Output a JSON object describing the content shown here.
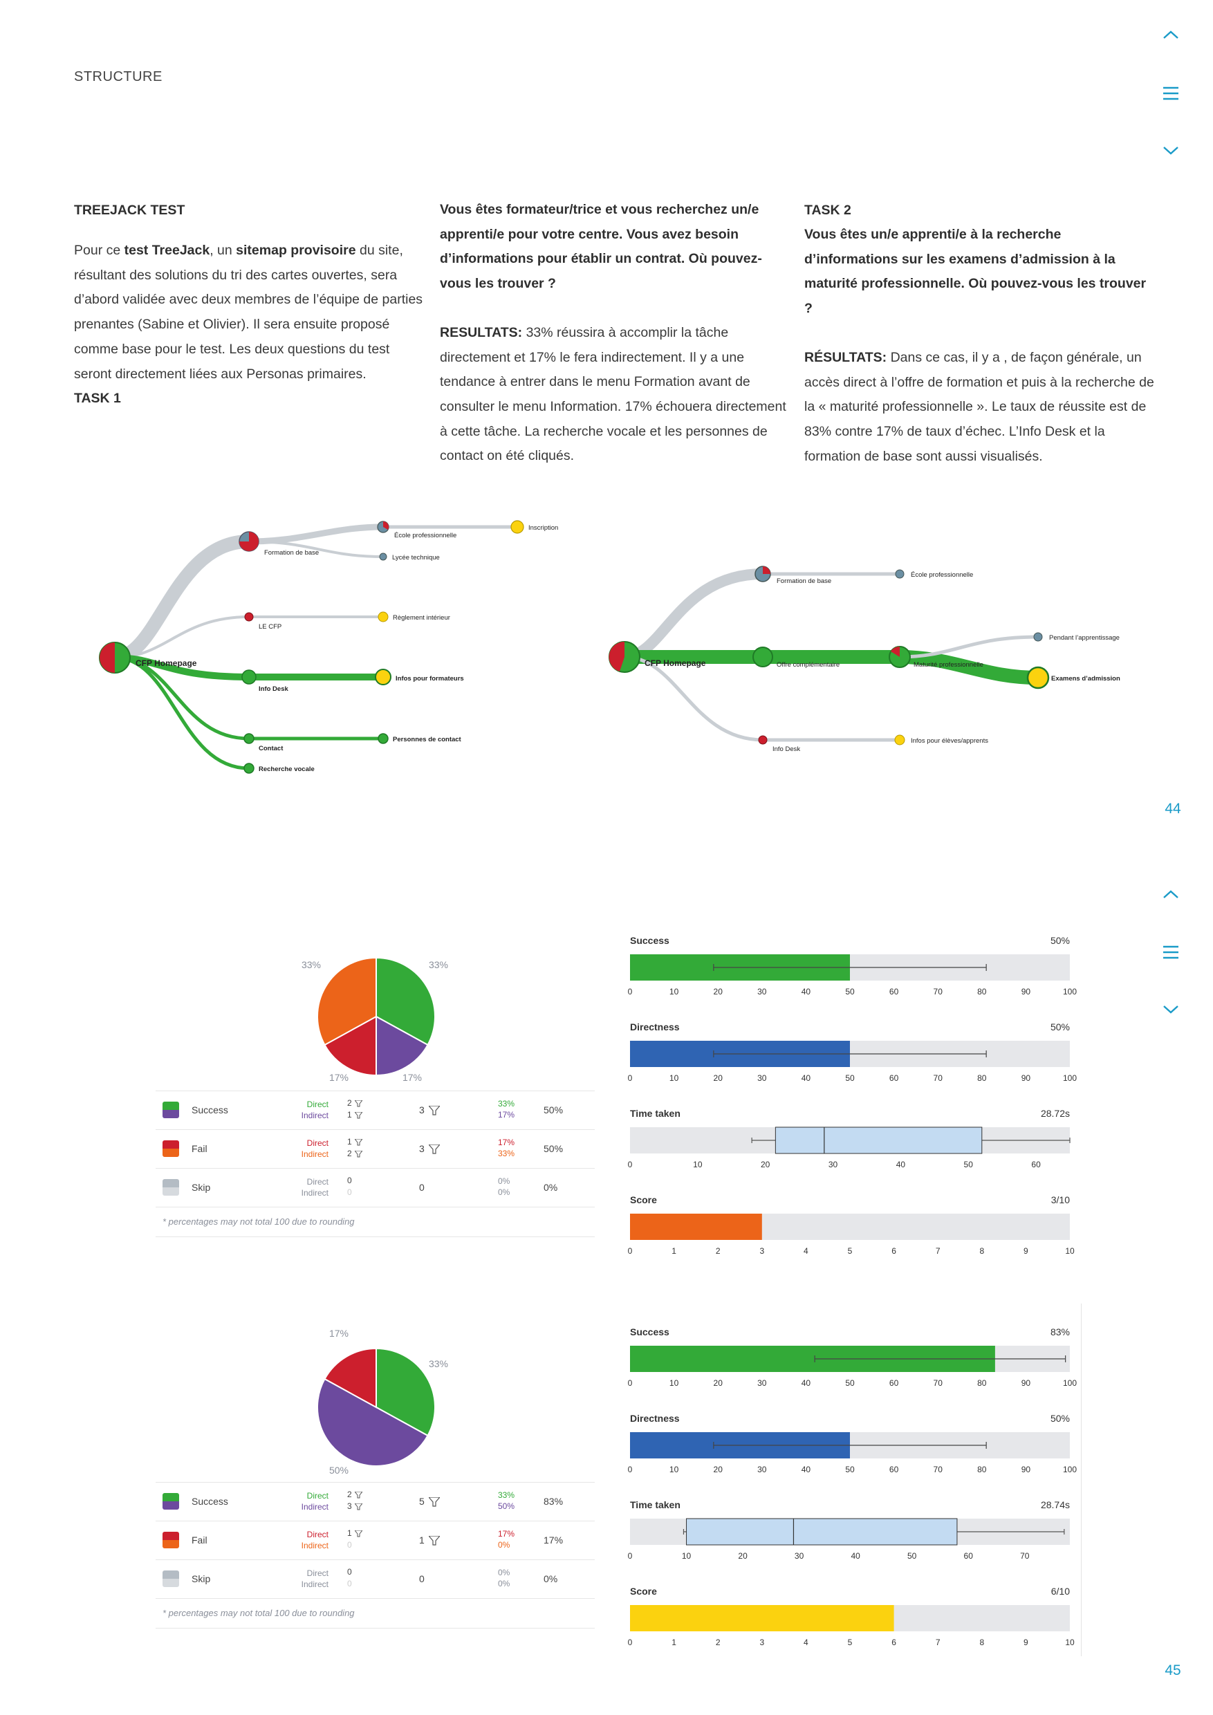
{
  "header": {
    "section": "STRUCTURE"
  },
  "pages": {
    "first": "44",
    "second": "45"
  },
  "intro": {
    "title": "TREEJACK TEST",
    "p1_a": "Pour ce ",
    "p1_b": "test TreeJack",
    "p1_c": ", un ",
    "p1_d": "sitemap provisoire",
    "p1_e": " du site, résultant des solutions du tri des cartes ouvertes, sera d’abord validée avec deux membres de l’équipe de parties prenantes (Sabine et Olivier). Il sera ensuite proposé comme base pour le test. Les deux questions du test seront directement liées aux Personas primaires.",
    "task1_label": "TASK 1"
  },
  "task1": {
    "question": "Vous êtes formateur/trice et vous recherchez un/e apprenti/e pour votre centre. Vous avez besoin d’informations pour établir un contrat. Où pouvez-vous les trouver ?",
    "results_label": "RESULTATS:",
    "results_text": " 33% réussira à accomplir la tâche directement et 17% le fera indirectement. Il y a une tendance à entrer dans le menu Formation avant de consulter le menu Information. 17% échouera directement à cette tâche. La recherche vocale et les personnes de contact on été cliqués."
  },
  "task2": {
    "title": "TASK 2",
    "question": "Vous êtes un/e apprenti/e à la recherche d’informations sur les examens d’admission à la maturité professionnelle. Où pouvez-vous les trouver ?",
    "results_label": "RÉSULTATS:",
    "results_text": " Dans ce cas, il y a , de façon générale, un accès direct à l’offre de formation et puis à la recherche de la « maturité professionnelle ». Le taux de réussite est de 83% contre 17% de taux d’échec. L’Info Desk et la formation de base sont aussi visualisés."
  },
  "tree1": {
    "root": "CFP Homepage",
    "formation": "Formation de base",
    "ecole": "École professionnelle",
    "lycee": "Lycée technique",
    "inscription": "Inscription",
    "lecfp": "LE CFP",
    "reglement": "Règlement intérieur",
    "infodesk": "Info Desk",
    "infos_formateurs": "Infos pour formateurs",
    "contact": "Contact",
    "personnes": "Personnes de contact",
    "recherche": "Recherche vocale"
  },
  "tree2": {
    "root": "CFP Homepage",
    "formation": "Formation de base",
    "ecole": "École professionnelle",
    "offre": "Offre complémentaire",
    "maturite": "Maturité professionnelle",
    "pendant": "Pendant l’apprentissage",
    "examens": "Examens d’admission",
    "infodesk": "Info Desk",
    "infos_eleves": "Infos pour élèves/apprents"
  },
  "colors": {
    "success_direct": "#33aa38",
    "success_indirect": "#6c4a9e",
    "fail_direct": "#cc1f2d",
    "fail_indirect": "#ec6419",
    "skip": "#b4bcc4",
    "directness": "#2f64b3",
    "score1": "#ec6419",
    "score2": "#fbd20f",
    "track": "#e6e7ea",
    "box": "#c3dbf2",
    "accent": "#1a9bc8"
  },
  "result_tables": [
    {
      "pie_labels": [
        "33%",
        "33%",
        "17%",
        "17%"
      ],
      "rows": [
        {
          "label": "Success",
          "direct_label": "Direct",
          "indirect_label": "Indirect",
          "direct": "2",
          "indirect": "1",
          "total": "3",
          "pct_direct": "33%",
          "pct_indirect": "17%",
          "overall": "50%"
        },
        {
          "label": "Fail",
          "direct_label": "Direct",
          "indirect_label": "Indirect",
          "direct": "1",
          "indirect": "2",
          "total": "3",
          "pct_direct": "17%",
          "pct_indirect": "33%",
          "overall": "50%"
        },
        {
          "label": "Skip",
          "direct_label": "Direct",
          "indirect_label": "Indirect",
          "direct": "0",
          "indirect": "0",
          "total": "0",
          "pct_direct": "0%",
          "pct_indirect": "0%",
          "overall": "0%"
        }
      ],
      "note": "* percentages may not total 100 due to rounding"
    },
    {
      "pie_labels": [
        "33%",
        "50%",
        "17%"
      ],
      "rows": [
        {
          "label": "Success",
          "direct_label": "Direct",
          "indirect_label": "Indirect",
          "direct": "2",
          "indirect": "3",
          "total": "5",
          "pct_direct": "33%",
          "pct_indirect": "50%",
          "overall": "83%"
        },
        {
          "label": "Fail",
          "direct_label": "Direct",
          "indirect_label": "Indirect",
          "direct": "1",
          "indirect": "0",
          "total": "1",
          "pct_direct": "17%",
          "pct_indirect": "0%",
          "overall": "17%"
        },
        {
          "label": "Skip",
          "direct_label": "Direct",
          "indirect_label": "Indirect",
          "direct": "0",
          "indirect": "0",
          "total": "0",
          "pct_direct": "0%",
          "pct_indirect": "0%",
          "overall": "0%"
        }
      ],
      "note": "* percentages may not total 100 due to rounding"
    }
  ],
  "chart_data": [
    {
      "type": "pie",
      "slices": [
        {
          "name": "Success Direct",
          "value": 33
        },
        {
          "name": "Success Indirect",
          "value": 17
        },
        {
          "name": "Fail Direct",
          "value": 17
        },
        {
          "name": "Fail Indirect",
          "value": 33
        }
      ]
    },
    {
      "type": "bar",
      "title": "Success",
      "value": 50,
      "value_label": "50%",
      "error": [
        19,
        81
      ],
      "xlim": [
        0,
        100
      ],
      "ticks": [
        "0",
        "10",
        "20",
        "30",
        "40",
        "50",
        "60",
        "70",
        "80",
        "90",
        "100"
      ]
    },
    {
      "type": "bar",
      "title": "Directness",
      "value": 50,
      "value_label": "50%",
      "error": [
        19,
        81
      ],
      "xlim": [
        0,
        100
      ],
      "ticks": [
        "0",
        "10",
        "20",
        "30",
        "40",
        "50",
        "60",
        "70",
        "80",
        "90",
        "100"
      ]
    },
    {
      "type": "box",
      "title": "Time taken",
      "value_label": "28.72s",
      "whisker_low": 18,
      "q1": 21.5,
      "median": 28.7,
      "q3": 52,
      "whisker_high": 65,
      "xlim": [
        0,
        65
      ],
      "ticks": [
        "0",
        "10",
        "20",
        "30",
        "40",
        "50",
        "60"
      ]
    },
    {
      "type": "bar",
      "title": "Score",
      "value": 3,
      "value_label": "3/10",
      "xlim": [
        0,
        10
      ],
      "ticks": [
        "0",
        "1",
        "2",
        "3",
        "4",
        "5",
        "6",
        "7",
        "8",
        "9",
        "10"
      ]
    },
    {
      "type": "pie",
      "slices": [
        {
          "name": "Success Direct",
          "value": 33
        },
        {
          "name": "Success Indirect",
          "value": 50
        },
        {
          "name": "Fail Direct",
          "value": 17
        }
      ]
    },
    {
      "type": "bar",
      "title": "Success",
      "value": 83,
      "value_label": "83%",
      "error": [
        42,
        99
      ],
      "xlim": [
        0,
        100
      ],
      "ticks": [
        "0",
        "10",
        "20",
        "30",
        "40",
        "50",
        "60",
        "70",
        "80",
        "90",
        "100"
      ]
    },
    {
      "type": "bar",
      "title": "Directness",
      "value": 50,
      "value_label": "50%",
      "error": [
        19,
        81
      ],
      "xlim": [
        0,
        100
      ],
      "ticks": [
        "0",
        "10",
        "20",
        "30",
        "40",
        "50",
        "60",
        "70",
        "80",
        "90",
        "100"
      ]
    },
    {
      "type": "box",
      "title": "Time taken",
      "value_label": "28.74s",
      "whisker_low": 9.5,
      "q1": 10,
      "median": 29,
      "q3": 58,
      "whisker_high": 77,
      "xlim": [
        0,
        78
      ],
      "ticks": [
        "0",
        "10",
        "20",
        "30",
        "40",
        "50",
        "60",
        "70"
      ]
    },
    {
      "type": "bar",
      "title": "Score",
      "value": 6,
      "value_label": "6/10",
      "xlim": [
        0,
        10
      ],
      "ticks": [
        "0",
        "1",
        "2",
        "3",
        "4",
        "5",
        "6",
        "7",
        "8",
        "9",
        "10"
      ]
    }
  ]
}
